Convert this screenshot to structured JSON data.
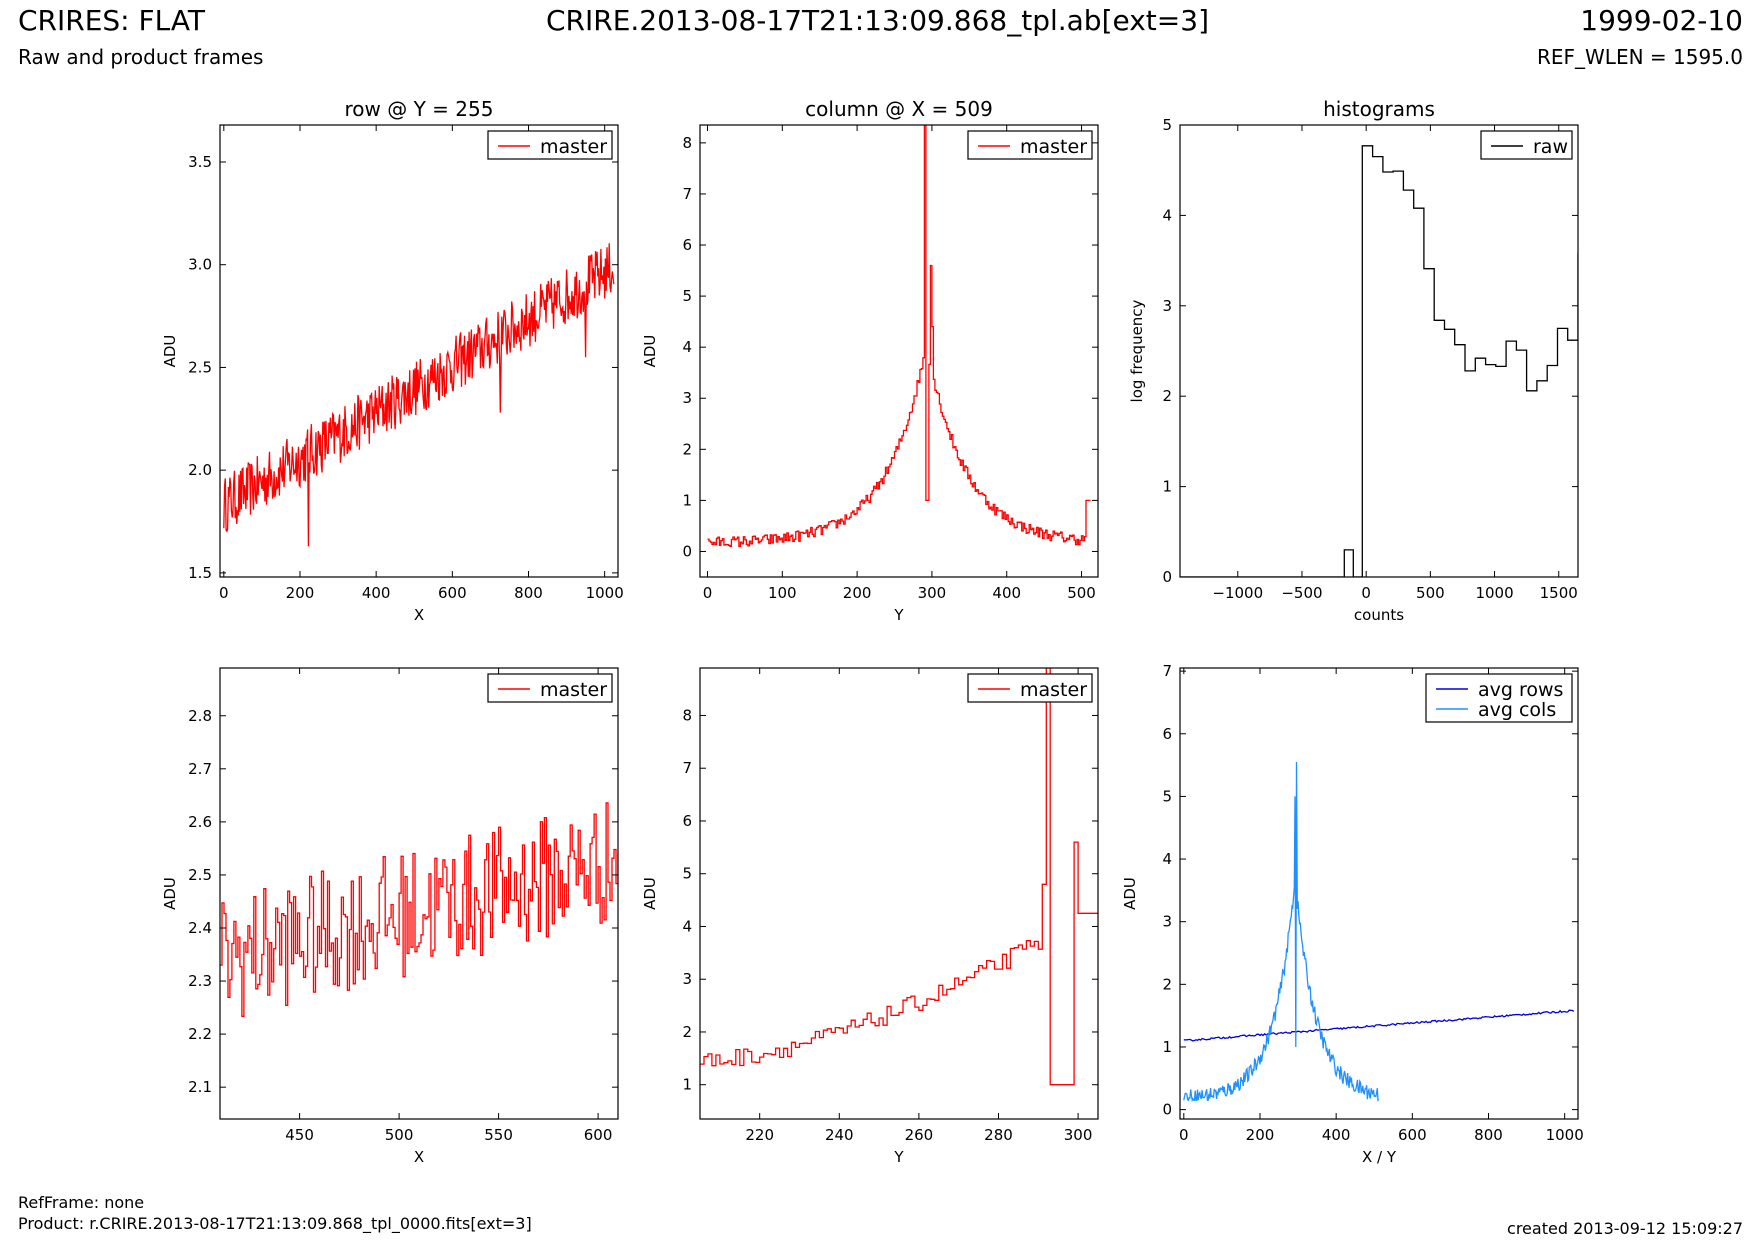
{
  "header": {
    "title_left": "CRIRES: FLAT",
    "subtitle_left": "Raw and product frames",
    "title_center": "CRIRE.2013-08-17T21:13:09.868_tpl.ab[ext=3]",
    "title_right": "1999-02-10",
    "subtitle_right": "REF_WLEN = 1595.0"
  },
  "footer": {
    "refframe": "RefFrame: none",
    "product": "Product: r.CRIRE.2013-08-17T21:13:09.868_tpl_0000.fits[ext=3]",
    "created": "created 2013-09-12 15:09:27"
  },
  "chart_data": [
    {
      "id": "row-plot",
      "type": "line",
      "title": "row @ Y = 255",
      "xlabel": "X",
      "ylabel": "ADU",
      "xlim": [
        -10,
        1035
      ],
      "ylim": [
        1.48,
        3.68
      ],
      "xticks": [
        0,
        200,
        400,
        600,
        800,
        1000
      ],
      "yticks": [
        1.5,
        2.0,
        2.5,
        3.0,
        3.5
      ],
      "legend": "top-right",
      "series": [
        {
          "name": "master",
          "color": "#ff0000",
          "gen": "row"
        }
      ]
    },
    {
      "id": "column-plot",
      "type": "line",
      "title": "column @ X = 509",
      "xlabel": "Y",
      "ylabel": "ADU",
      "xlim": [
        -10,
        522
      ],
      "ylim": [
        -0.5,
        8.35
      ],
      "xticks": [
        0,
        100,
        200,
        300,
        400,
        500
      ],
      "yticks": [
        0,
        1,
        2,
        3,
        4,
        5,
        6,
        7,
        8
      ],
      "legend": "top-right",
      "series": [
        {
          "name": "master",
          "color": "#ff0000",
          "gen": "column"
        }
      ]
    },
    {
      "id": "histogram-plot",
      "type": "line",
      "title": "histograms",
      "xlabel": "counts",
      "ylabel": "log frequency",
      "xlim": [
        -1450,
        1650
      ],
      "ylim": [
        0,
        5
      ],
      "xticks": [
        -1000,
        -500,
        0,
        500,
        1000,
        1500
      ],
      "yticks": [
        0,
        1,
        2,
        3,
        4,
        5
      ],
      "legend": "top-right",
      "series": [
        {
          "name": "raw",
          "color": "#000000",
          "step": true,
          "bin_edges": [
            -1450,
            -170,
            -100,
            -30,
            50,
            130,
            210,
            290,
            370,
            450,
            530,
            610,
            690,
            770,
            850,
            930,
            1010,
            1090,
            1170,
            1250,
            1330,
            1410,
            1490,
            1570,
            1650
          ],
          "values": [
            0,
            0.3,
            0,
            4.77,
            4.65,
            4.48,
            4.49,
            4.28,
            4.08,
            3.41,
            2.84,
            2.74,
            2.57,
            2.28,
            2.42,
            2.35,
            2.33,
            2.61,
            2.51,
            2.06,
            2.17,
            2.34,
            2.75,
            2.62,
            3.58
          ]
        }
      ]
    },
    {
      "id": "row-zoom-plot",
      "type": "line",
      "title": "",
      "xlabel": "X",
      "ylabel": "ADU",
      "xlim": [
        410,
        610
      ],
      "ylim": [
        2.04,
        2.89
      ],
      "xticks": [
        450,
        500,
        550,
        600
      ],
      "yticks": [
        2.1,
        2.2,
        2.3,
        2.4,
        2.5,
        2.6,
        2.7,
        2.8
      ],
      "legend": "top-right",
      "series": [
        {
          "name": "master",
          "color": "#ff0000",
          "gen": "rowzoom"
        }
      ]
    },
    {
      "id": "column-zoom-plot",
      "type": "line",
      "title": "",
      "xlabel": "Y",
      "ylabel": "ADU",
      "xlim": [
        205,
        305
      ],
      "ylim": [
        0.35,
        8.9
      ],
      "xticks": [
        220,
        240,
        260,
        280,
        300
      ],
      "yticks": [
        1,
        2,
        3,
        4,
        5,
        6,
        7,
        8
      ],
      "legend": "top-right",
      "series": [
        {
          "name": "master",
          "color": "#ff0000",
          "gen": "colzoom"
        }
      ]
    },
    {
      "id": "average-plot",
      "type": "line",
      "title": "",
      "xlabel": "X / Y",
      "ylabel": "ADU",
      "xlim": [
        -10,
        1035
      ],
      "ylim": [
        -0.15,
        7.05
      ],
      "xticks": [
        0,
        200,
        400,
        600,
        800,
        1000
      ],
      "yticks": [
        0,
        1,
        2,
        3,
        4,
        5,
        6,
        7
      ],
      "legend": "top-right",
      "series": [
        {
          "name": "avg rows",
          "color": "#0000dd",
          "gen": "avgrows"
        },
        {
          "name": "avg cols",
          "color": "#1e90ff",
          "gen": "avgcols"
        }
      ]
    }
  ]
}
